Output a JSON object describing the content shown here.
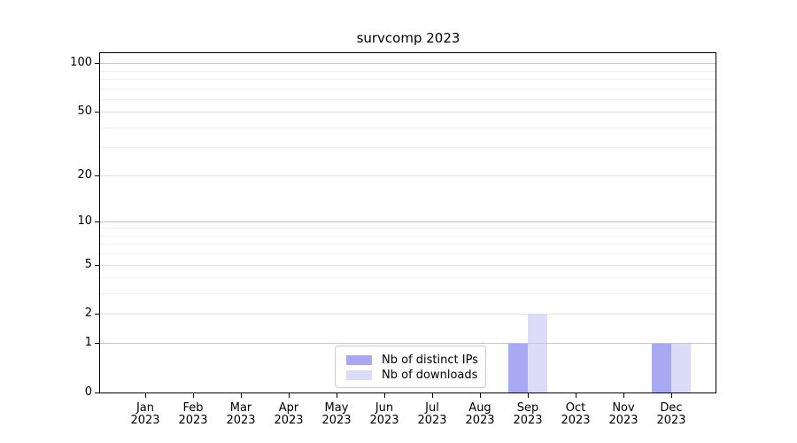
{
  "figure": {
    "title": "survcomp 2023"
  },
  "chart_data": {
    "type": "bar",
    "title": "survcomp 2023",
    "categories": [
      "Jan 2023",
      "Feb 2023",
      "Mar 2023",
      "Apr 2023",
      "May 2023",
      "Jun 2023",
      "Jul 2023",
      "Aug 2023",
      "Sep 2023",
      "Oct 2023",
      "Nov 2023",
      "Dec 2023"
    ],
    "series": [
      {
        "name": "Nb of distinct IPs",
        "color": "#a9a9f3",
        "values": [
          0,
          0,
          0,
          0,
          0,
          0,
          0,
          0,
          1,
          0,
          0,
          1
        ]
      },
      {
        "name": "Nb of downloads",
        "color": "#dcdcf8",
        "values": [
          0,
          0,
          0,
          0,
          0,
          0,
          0,
          0,
          2,
          0,
          0,
          1
        ]
      }
    ],
    "xlabel": "",
    "ylabel": "",
    "yscale": "log1p",
    "ylim": [
      0,
      115
    ],
    "y_major_ticks": [
      0,
      1,
      2,
      5,
      10,
      20,
      50,
      100
    ],
    "y_minor_gridlines": [
      3,
      4,
      6,
      7,
      8,
      9,
      30,
      40,
      60,
      70,
      80,
      90
    ],
    "grid": "horizontal",
    "legend": {
      "position": "lower center",
      "entries": [
        "Nb of distinct IPs",
        "Nb of downloads"
      ]
    }
  },
  "style": {
    "background": "#ffffff",
    "axis_color": "#000000",
    "text_color": "#000000",
    "grid_power10_color": "#c6c6c6",
    "grid_labeled_color": "#dedede",
    "grid_minor_color": "#efefef",
    "legend_border_color": "#cccccc"
  }
}
